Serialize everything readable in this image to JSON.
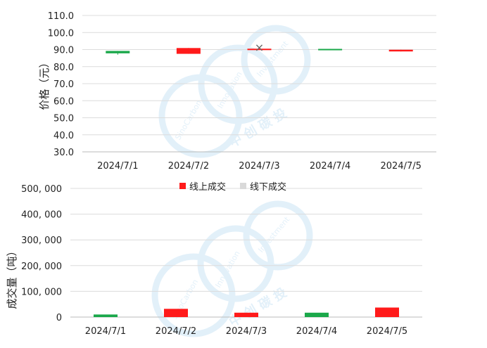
{
  "chart_data": [
    {
      "type": "candlestick",
      "ylabel": "价格（元）",
      "ylim": [
        30.0,
        110.0
      ],
      "yticks": [
        "110.0",
        "100.0",
        "90.0",
        "80.0",
        "70.0",
        "60.0",
        "50.0",
        "40.0",
        "30.0"
      ],
      "categories": [
        "2024/7/1",
        "2024/7/2",
        "2024/7/3",
        "2024/7/4",
        "2024/7/5"
      ],
      "candles": [
        {
          "open": 87.8,
          "close": 89.2,
          "high": 89.2,
          "low": 87.0,
          "color": "#1aa84a"
        },
        {
          "open": 90.9,
          "close": 87.5,
          "high": 90.9,
          "low": 87.5,
          "color": "#ff1a1a"
        },
        {
          "open": 90.5,
          "close": 89.8,
          "high": 90.5,
          "low": 89.8,
          "color": "#ff1a1a"
        },
        {
          "open": 89.9,
          "close": 90.4,
          "high": 90.4,
          "low": 89.9,
          "color": "#1aa84a"
        },
        {
          "open": 89.9,
          "close": 88.9,
          "high": 89.9,
          "low": 88.9,
          "color": "#ff1a1a"
        }
      ],
      "markers": [
        {
          "category": "2024/7/3",
          "value": 91.5,
          "symbol": "×",
          "color": "#666666"
        }
      ]
    },
    {
      "type": "bar",
      "ylabel": "成交量（吨）",
      "ylim": [
        0,
        500000
      ],
      "yticks": [
        "500, 000",
        "400, 000",
        "300, 000",
        "200, 000",
        "100, 000",
        "0"
      ],
      "categories": [
        "2024/7/1",
        "2024/7/2",
        "2024/7/3",
        "2024/7/4",
        "2024/7/5"
      ],
      "values": [
        10000,
        32000,
        17000,
        17000,
        37000
      ],
      "colors": [
        "#1aa84a",
        "#ff1a1a",
        "#ff1a1a",
        "#1aa84a",
        "#ff1a1a"
      ],
      "legend": [
        {
          "name": "线上成交",
          "color": "#ff1a1a"
        },
        {
          "name": "线下成交",
          "color": "#d9d9d9"
        }
      ],
      "legend_position": "top"
    }
  ],
  "watermark": {
    "text_a": "SinoCarbon",
    "text_b": "Innovation",
    "text_c": "Investment",
    "text_cn": "中 创 碳 投"
  }
}
